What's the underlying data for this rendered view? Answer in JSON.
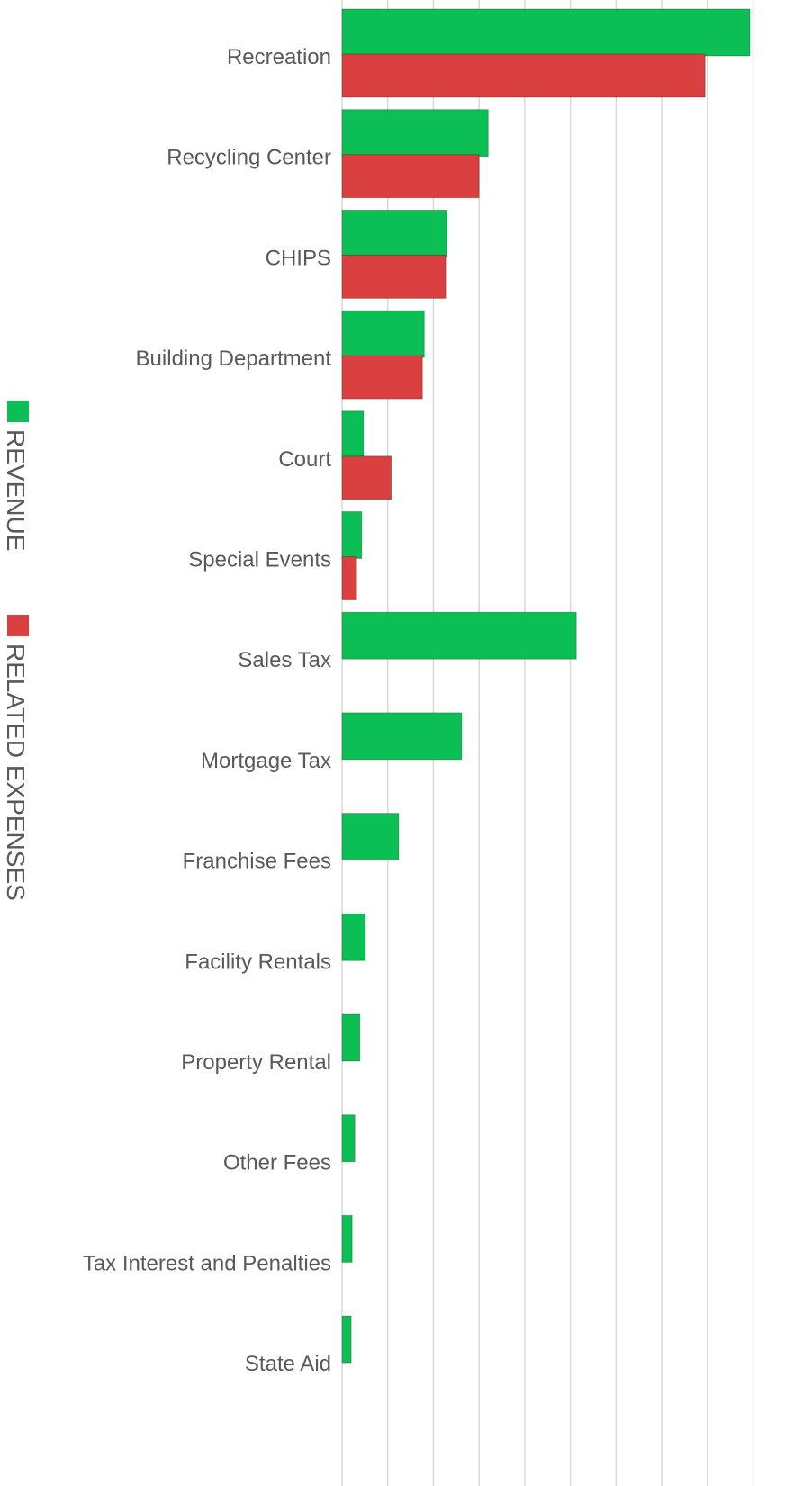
{
  "chart_data": {
    "type": "bar",
    "orientation": "horizontal",
    "categories": [
      "Recreation",
      "Recycling Center",
      "CHIPS",
      "Building Department",
      "Court",
      "Special Events",
      "Sales Tax",
      "Mortgage Tax",
      "Franchise Fees",
      "Facility Rentals",
      "Property Rental",
      "Other Fees",
      "Tax Interest and Penalties",
      "State Aid"
    ],
    "series": [
      {
        "name": "REVENUE",
        "color": "#0cbf55",
        "values": [
          8.93,
          3.2,
          2.29,
          1.8,
          0.47,
          0.43,
          5.13,
          2.62,
          1.24,
          0.51,
          0.39,
          0.28,
          0.22,
          0.2
        ]
      },
      {
        "name": "RELATED EXPENSES",
        "color": "#d9403f",
        "values": [
          7.95,
          3.0,
          2.27,
          1.76,
          1.08,
          0.32,
          null,
          null,
          null,
          null,
          null,
          null,
          null,
          null
        ]
      }
    ],
    "xlim": [
      0,
      9
    ],
    "xticks": [
      0,
      1,
      2,
      3,
      4,
      5,
      6,
      7,
      8,
      9
    ],
    "grid": true,
    "legend": "left"
  }
}
